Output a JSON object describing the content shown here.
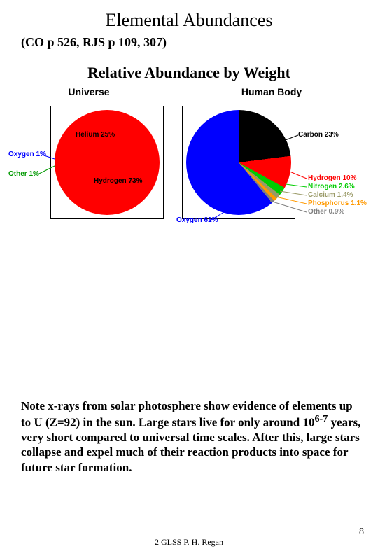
{
  "title": "Elemental Abundances",
  "subtitle": "(CO p 526, RJS p 109, 307)",
  "chart_title": "Relative Abundance by Weight",
  "charts": {
    "universe": {
      "title": "Universe",
      "type": "pie",
      "background_color": "#ffffff",
      "border_color": "#000000",
      "slices": [
        {
          "label": "Hydrogen 73%",
          "value": 73,
          "color": "#ff0000"
        },
        {
          "label": "Helium 25%",
          "value": 25,
          "color": "#ffff00"
        },
        {
          "label": "Oxygen 1%",
          "value": 1,
          "color": "#0000ff"
        },
        {
          "label": "Other 1%",
          "value": 1,
          "color": "#009900"
        }
      ],
      "outside_labels": [
        {
          "text": "Oxygen 1%",
          "color": "#0000ff"
        },
        {
          "text": "Other 1%",
          "color": "#009900"
        }
      ],
      "label_fontsize": 10
    },
    "human_body": {
      "title": "Human Body",
      "type": "pie",
      "background_color": "#ffffff",
      "border_color": "#000000",
      "slices": [
        {
          "label": "Oxygen 61%",
          "value": 61,
          "color": "#0000ff"
        },
        {
          "label": "Carbon 23%",
          "value": 23,
          "color": "#000000"
        },
        {
          "label": "Hydrogen 10%",
          "value": 10,
          "color": "#ff0000"
        },
        {
          "label": "Nitrogen 2.6%",
          "value": 2.6,
          "color": "#00cc00"
        },
        {
          "label": "Calcium 1.4%",
          "value": 1.4,
          "color": "#999966"
        },
        {
          "label": "Phosphorus 1.1%",
          "value": 1.1,
          "color": "#ff9900"
        },
        {
          "label": "Other 0.9%",
          "value": 0.9,
          "color": "#808080"
        }
      ],
      "outside_labels": [
        {
          "text": "Oxygen 61%",
          "color": "#0000ff"
        },
        {
          "text": "Carbon 23%",
          "color": "#000000"
        },
        {
          "text": "Hydrogen 10%",
          "color": "#ff0000"
        },
        {
          "text": "Nitrogen 2.6%",
          "color": "#00cc00"
        },
        {
          "text": "Calcium 1.4%",
          "color": "#999966"
        },
        {
          "text": "Phosphorus 1.1%",
          "color": "#ff9900"
        },
        {
          "text": "Other 0.9%",
          "color": "#808080"
        }
      ],
      "label_fontsize": 10
    }
  },
  "note_html": "Note x-rays from solar photosphere show evidence of elements up to U (Z=92) in the sun. Large stars live for only around 10<sup>6-7</sup> years, very short compared to universal time scales. After this, large stars collapse and expel much of their reaction products into space for future star formation.",
  "footer": "2 GLSS P. H. Regan",
  "page_number": "8"
}
